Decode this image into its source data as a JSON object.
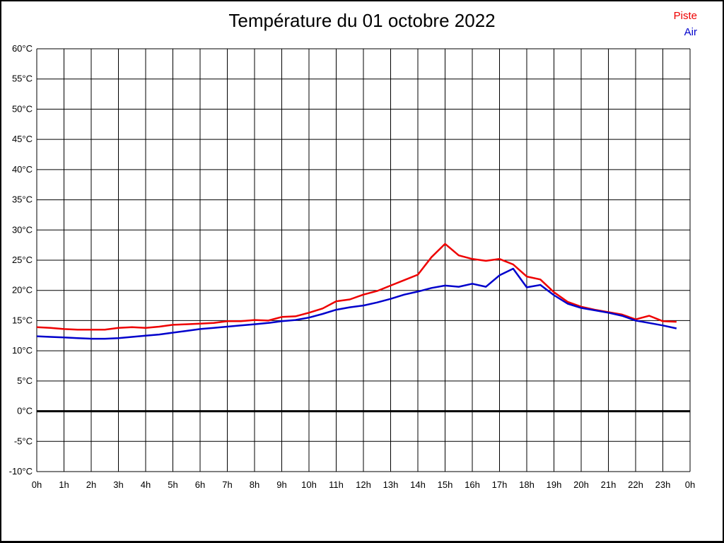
{
  "page": {
    "background": "#ffffff",
    "frame_color": "#000000"
  },
  "header": {
    "title": "Température du 01 octobre 2022"
  },
  "legend": {
    "position": "top-right",
    "items": [
      {
        "label": "Piste",
        "color": "#ee0000"
      },
      {
        "label": "Air",
        "color": "#0000cc"
      }
    ]
  },
  "chart_data": {
    "type": "line",
    "title": "Température du 01 octobre 2022",
    "xlabel": "",
    "ylabel": "",
    "xlim": [
      0,
      24
    ],
    "ylim": [
      -10,
      60
    ],
    "grid": true,
    "zero_line_bold": true,
    "legend_position": "top-right",
    "x_tick_values": [
      0,
      1,
      2,
      3,
      4,
      5,
      6,
      7,
      8,
      9,
      10,
      11,
      12,
      13,
      14,
      15,
      16,
      17,
      18,
      19,
      20,
      21,
      22,
      23,
      24
    ],
    "x_tick_labels": [
      "0h",
      "1h",
      "2h",
      "3h",
      "4h",
      "5h",
      "6h",
      "7h",
      "8h",
      "9h",
      "10h",
      "11h",
      "12h",
      "13h",
      "14h",
      "15h",
      "16h",
      "17h",
      "18h",
      "19h",
      "20h",
      "21h",
      "22h",
      "23h",
      "0h"
    ],
    "y_tick_values": [
      60,
      55,
      50,
      45,
      40,
      35,
      30,
      25,
      20,
      15,
      10,
      5,
      0,
      -5,
      -10
    ],
    "y_tick_labels": [
      "60°C",
      "55°C",
      "50°C",
      "45°C",
      "40°C",
      "35°C",
      "30°C",
      "25°C",
      "20°C",
      "15°C",
      "10°C",
      "5°C",
      "0°C",
      "-5°C",
      "-10°C"
    ],
    "x": [
      0,
      0.5,
      1,
      1.5,
      2,
      2.5,
      3,
      3.5,
      4,
      4.5,
      5,
      5.5,
      6,
      6.5,
      7,
      7.5,
      8,
      8.5,
      9,
      9.5,
      10,
      10.5,
      11,
      11.5,
      12,
      12.5,
      13,
      13.5,
      14,
      14.5,
      15,
      15.5,
      16,
      16.5,
      17,
      17.5,
      18,
      18.5,
      19,
      19.5,
      20,
      20.5,
      21,
      21.5,
      22,
      22.5,
      23,
      23.5
    ],
    "series": [
      {
        "name": "Piste",
        "color": "#ee0000",
        "values": [
          13.9,
          13.8,
          13.6,
          13.5,
          13.5,
          13.5,
          13.8,
          13.9,
          13.8,
          14.0,
          14.3,
          14.4,
          14.5,
          14.6,
          14.9,
          14.9,
          15.1,
          15.0,
          15.6,
          15.7,
          16.3,
          17.0,
          18.2,
          18.5,
          19.3,
          19.9,
          20.8,
          21.7,
          22.6,
          25.5,
          27.7,
          25.8,
          25.2,
          24.9,
          25.2,
          24.3,
          22.3,
          21.8,
          19.7,
          18.1,
          17.3,
          16.8,
          16.4,
          16.0,
          15.2,
          15.8,
          14.9,
          14.8
        ]
      },
      {
        "name": "Air",
        "color": "#0000cc",
        "values": [
          12.4,
          12.3,
          12.2,
          12.1,
          12.0,
          12.0,
          12.1,
          12.3,
          12.5,
          12.7,
          13.0,
          13.3,
          13.6,
          13.8,
          14.0,
          14.2,
          14.4,
          14.6,
          14.9,
          15.1,
          15.5,
          16.1,
          16.8,
          17.2,
          17.5,
          18.0,
          18.6,
          19.3,
          19.8,
          20.4,
          20.8,
          20.6,
          21.1,
          20.6,
          22.5,
          23.6,
          20.5,
          20.9,
          19.2,
          17.8,
          17.1,
          16.7,
          16.3,
          15.8,
          15.0,
          14.6,
          14.2,
          13.7
        ]
      }
    ]
  }
}
